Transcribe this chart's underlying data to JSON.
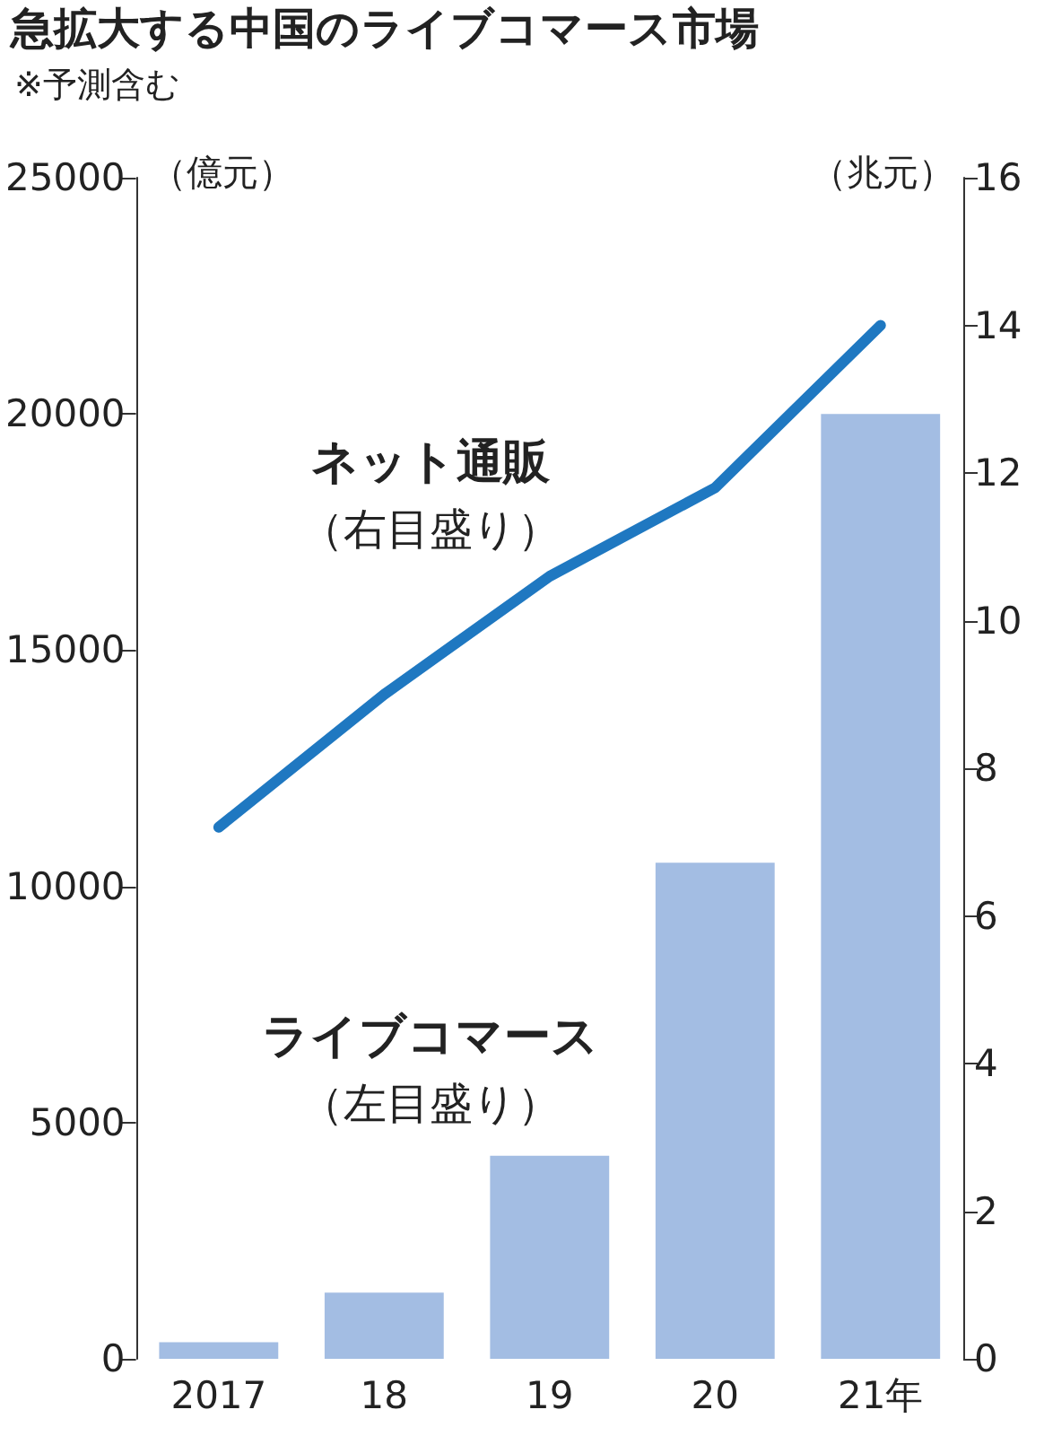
{
  "chart_data": {
    "type": "bar",
    "title": "急拡大する中国のライブコマース市場",
    "subtitle": "※予測含む",
    "categories": [
      "2017",
      "18",
      "19",
      "20",
      "21年"
    ],
    "series": [
      {
        "name": "ライブコマース",
        "color": "#a3bde3",
        "values": [
          350,
          1400,
          4300,
          10500,
          20000
        ]
      },
      {
        "name": "ネット通販",
        "type": "line",
        "axis": "y2",
        "color": "#1f78c1",
        "values": [
          7.2,
          9.0,
          10.6,
          11.8,
          14.0
        ]
      }
    ],
    "ylabel": "（億元）",
    "y2label": "（兆元）",
    "ylim": [
      0,
      25000
    ],
    "yticks": [
      0,
      5000,
      10000,
      15000,
      20000,
      25000
    ],
    "y2lim": [
      0,
      16
    ],
    "y2ticks": [
      0,
      2,
      4,
      6,
      8,
      10,
      12,
      14,
      16
    ],
    "annotations": [
      "（左目盛り）",
      "（右目盛り）"
    ],
    "grid": false,
    "legend": false,
    "marker": "none"
  }
}
